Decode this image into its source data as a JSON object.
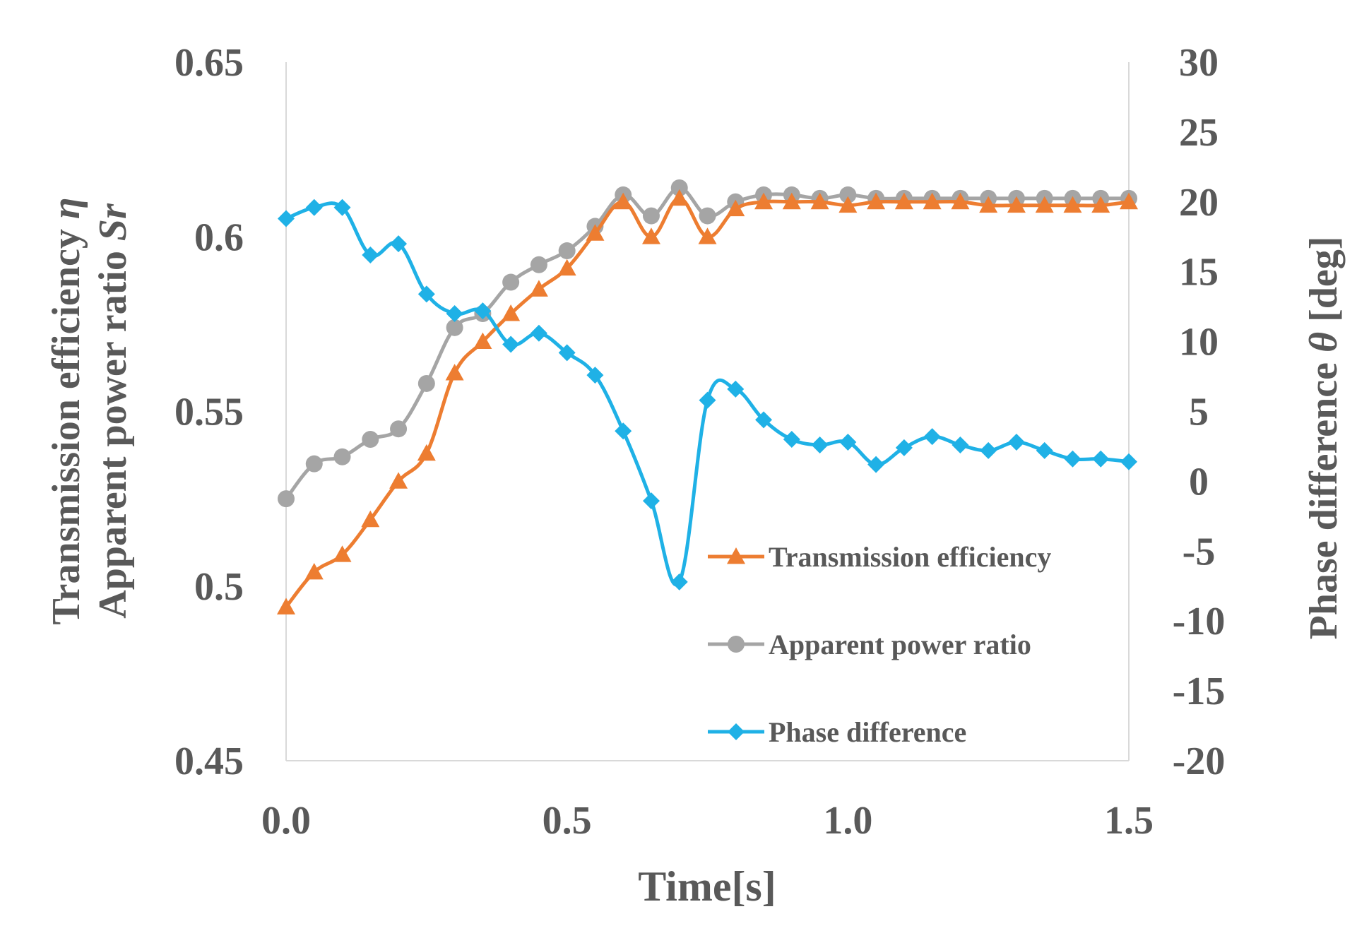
{
  "chart_data": {
    "type": "line",
    "xlabel": "Time[s]",
    "ylabel_left": {
      "line1_prefix": "Transmission efficiency ",
      "line1_symbol": "η",
      "line2_prefix": "Apparent power ratio ",
      "line2_symbol": "Sr"
    },
    "ylabel_right": {
      "prefix": "Phase difference ",
      "symbol": "θ",
      "suffix": " [deg]"
    },
    "xlim": [
      0.0,
      1.5
    ],
    "ylim_left": [
      0.45,
      0.65
    ],
    "ylim_right": [
      -20,
      30
    ],
    "x_ticks": [
      "0.0",
      "0.5",
      "1.0",
      "1.5"
    ],
    "y_left_ticks": [
      "0.65",
      "0.6",
      "0.55",
      "0.5",
      "0.45"
    ],
    "y_right_ticks": [
      "30",
      "25",
      "20",
      "15",
      "10",
      "5",
      "0",
      "-5",
      "-10",
      "-15",
      "-20"
    ],
    "grid": false,
    "legend_position": "bottom-right inside",
    "x": [
      0.0,
      0.05,
      0.1,
      0.15,
      0.2,
      0.25,
      0.3,
      0.35,
      0.4,
      0.45,
      0.5,
      0.55,
      0.6,
      0.65,
      0.7,
      0.75,
      0.8,
      0.85,
      0.9,
      0.95,
      1.0,
      1.05,
      1.1,
      1.15,
      1.2,
      1.25,
      1.3,
      1.35,
      1.4,
      1.45,
      1.5
    ],
    "series": [
      {
        "name": "Transmission efficiency",
        "axis": "left",
        "marker": "triangle",
        "color": "#ED7D31",
        "values": [
          0.494,
          0.504,
          0.509,
          0.519,
          0.53,
          0.538,
          0.561,
          0.57,
          0.578,
          0.585,
          0.591,
          0.601,
          0.61,
          0.6,
          0.611,
          0.6,
          0.608,
          0.61,
          0.61,
          0.61,
          0.609,
          0.61,
          0.61,
          0.61,
          0.61,
          0.609,
          0.609,
          0.609,
          0.609,
          0.609,
          0.61
        ]
      },
      {
        "name": "Apparent power ratio",
        "axis": "left",
        "marker": "circle",
        "color": "#A5A5A5",
        "values": [
          0.525,
          0.535,
          0.537,
          0.542,
          0.545,
          0.558,
          0.574,
          0.578,
          0.587,
          0.592,
          0.596,
          0.603,
          0.612,
          0.606,
          0.614,
          0.606,
          0.61,
          0.612,
          0.612,
          0.611,
          0.612,
          0.611,
          0.611,
          0.611,
          0.611,
          0.611,
          0.611,
          0.611,
          0.611,
          0.611,
          0.611
        ]
      },
      {
        "name": "Phase difference",
        "axis": "right",
        "marker": "diamond",
        "color": "#1FB1E6",
        "values": [
          18.8,
          19.6,
          19.6,
          16.2,
          17.0,
          13.4,
          12.0,
          12.2,
          9.8,
          10.6,
          9.2,
          7.6,
          3.6,
          -1.4,
          -7.2,
          5.8,
          6.6,
          4.4,
          3.0,
          2.6,
          2.8,
          1.2,
          2.4,
          3.2,
          2.6,
          2.2,
          2.8,
          2.2,
          1.6,
          1.6,
          1.4
        ]
      }
    ]
  }
}
